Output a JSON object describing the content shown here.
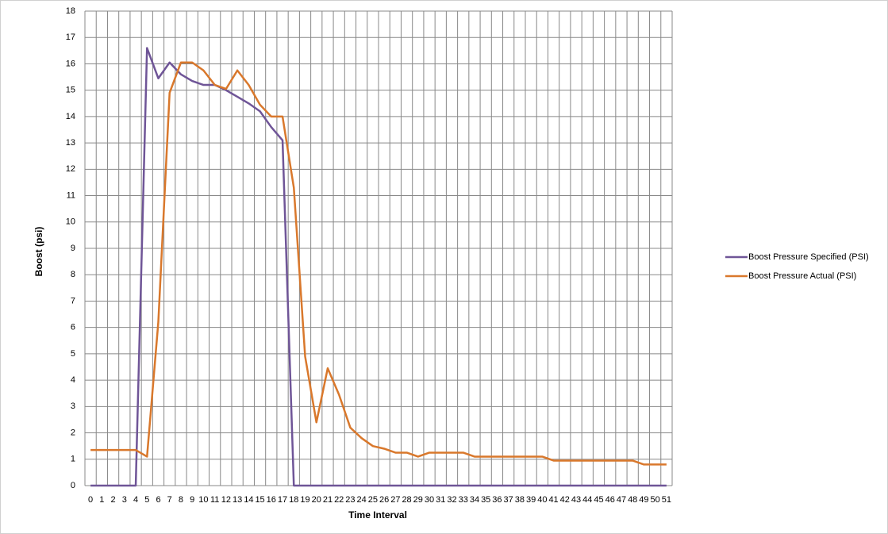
{
  "chart_data": {
    "type": "line",
    "x_label": "Time Interval",
    "y_label": "Boost (psi)",
    "categories": [
      "0",
      "1",
      "2",
      "3",
      "4",
      "5",
      "6",
      "7",
      "8",
      "9",
      "10",
      "11",
      "12",
      "13",
      "14",
      "15",
      "16",
      "17",
      "18",
      "19",
      "20",
      "21",
      "22",
      "23",
      "24",
      "25",
      "26",
      "27",
      "28",
      "29",
      "30",
      "31",
      "32",
      "33",
      "34",
      "35",
      "36",
      "37",
      "38",
      "39",
      "40",
      "41",
      "42",
      "43",
      "44",
      "45",
      "46",
      "47",
      "48",
      "49",
      "50",
      "51"
    ],
    "series": [
      {
        "name": "Boost Pressure Specified (PSI)",
        "color": "#6f5597",
        "values": [
          0,
          0,
          0,
          0,
          0,
          16.6,
          15.45,
          16.05,
          15.6,
          15.35,
          15.2,
          15.2,
          15.0,
          14.75,
          14.5,
          14.2,
          13.6,
          13.1,
          0,
          0,
          0,
          0,
          0,
          0,
          0,
          0,
          0,
          0,
          0,
          0,
          0,
          0,
          0,
          0,
          0,
          0,
          0,
          0,
          0,
          0,
          0,
          0,
          0,
          0,
          0,
          0,
          0,
          0,
          0,
          0,
          0,
          0
        ]
      },
      {
        "name": "Boost Pressure Actual (PSI)",
        "color": "#d9782c",
        "values": [
          1.35,
          1.35,
          1.35,
          1.35,
          1.35,
          1.1,
          6.2,
          14.9,
          16.05,
          16.05,
          15.75,
          15.2,
          15.05,
          15.75,
          15.2,
          14.45,
          14.0,
          14.0,
          11.3,
          4.9,
          2.4,
          4.45,
          3.45,
          2.2,
          1.8,
          1.5,
          1.4,
          1.25,
          1.25,
          1.1,
          1.25,
          1.25,
          1.25,
          1.25,
          1.1,
          1.1,
          1.1,
          1.1,
          1.1,
          1.1,
          1.1,
          0.95,
          0.95,
          0.95,
          0.95,
          0.95,
          0.95,
          0.95,
          0.95,
          0.8,
          0.8,
          0.8
        ]
      }
    ],
    "ylim": [
      0,
      18
    ],
    "yticks": [
      0,
      1,
      2,
      3,
      4,
      5,
      6,
      7,
      8,
      9,
      10,
      11,
      12,
      13,
      14,
      15,
      16,
      17,
      18
    ],
    "grid": true,
    "legend": "right"
  }
}
